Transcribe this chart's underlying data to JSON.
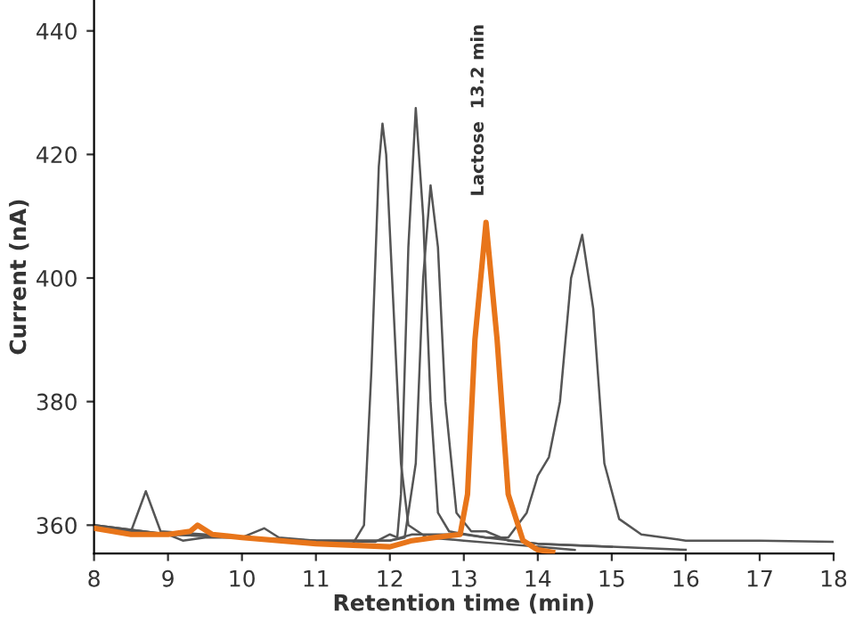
{
  "chart_data": {
    "type": "line",
    "xlabel": "Retention time (min)",
    "ylabel": "Current (nA)",
    "xlim": [
      8,
      18
    ],
    "xticks": [
      8,
      9,
      10,
      11,
      12,
      13,
      14,
      15,
      16,
      17,
      18
    ],
    "ylim": [
      355.4,
      445
    ],
    "yticks": [
      360,
      380,
      400,
      420,
      440
    ],
    "grid": false,
    "legend": false,
    "marker": "none",
    "line_style": "solid",
    "annotations": [
      "Lactose  13.2 min"
    ],
    "series": [
      {
        "color": "#555555",
        "x": [
          8,
          8.5,
          8.7,
          8.9,
          9.5,
          10,
          11,
          11.5,
          11.65,
          11.75,
          11.85,
          11.9,
          11.95,
          12.05,
          12.15,
          12.25,
          12.5,
          13,
          13.5,
          14,
          14.5
        ],
        "values": [
          359.5,
          359,
          365.5,
          359,
          358.5,
          358,
          357.3,
          357,
          360,
          385,
          418,
          425,
          420,
          395,
          370,
          360,
          358,
          357.5,
          357,
          356.5,
          356
        ]
      },
      {
        "color": "#555555",
        "x": [
          8,
          9,
          9.2,
          9.5,
          10,
          10.3,
          10.5,
          11,
          11.8,
          12,
          12.1,
          12.15,
          12.25,
          12.35,
          12.45,
          12.55,
          12.65,
          12.8,
          13.3,
          14,
          15,
          16
        ],
        "values": [
          360,
          358.5,
          357.5,
          358,
          358,
          359.5,
          358,
          357.5,
          357.3,
          358.5,
          358,
          365,
          405,
          427.5,
          410,
          380,
          362,
          359,
          358,
          357,
          356.5,
          356
        ]
      },
      {
        "color": "#555555",
        "x": [
          8,
          9,
          10,
          11,
          12,
          12.2,
          12.35,
          12.45,
          12.55,
          12.65,
          12.75,
          12.9,
          13.1,
          13.3,
          13.6,
          14,
          15
        ],
        "values": [
          359.5,
          358.5,
          358,
          357.5,
          357.5,
          358,
          370,
          400,
          415,
          405,
          380,
          362,
          359,
          359,
          357.5,
          357,
          356.5
        ]
      },
      {
        "color": "#555555",
        "x": [
          8,
          9,
          10,
          11,
          12,
          12.3,
          13,
          13.3,
          13.6,
          13.85,
          14,
          14.15,
          14.3,
          14.45,
          14.6,
          14.75,
          14.9,
          15.1,
          15.4,
          16,
          17,
          18
        ],
        "values": [
          360,
          358.5,
          358,
          357.5,
          357.5,
          358.5,
          358.5,
          358,
          358,
          362,
          368,
          371,
          380,
          400,
          407,
          395,
          370,
          361,
          358.5,
          357.5,
          357.5,
          357.3
        ]
      },
      {
        "color": "#e8751a",
        "x": [
          8,
          8.5,
          9,
          9.3,
          9.4,
          9.6,
          10,
          11,
          12,
          12.3,
          12.6,
          12.95,
          13.05,
          13.15,
          13.3,
          13.45,
          13.6,
          13.8,
          14,
          14.2
        ],
        "values": [
          359.5,
          358.5,
          358.5,
          359,
          360,
          358.5,
          358,
          357,
          356.5,
          357.5,
          358,
          358.5,
          365,
          390,
          409,
          390,
          365,
          357.5,
          356,
          355.6
        ]
      }
    ]
  }
}
